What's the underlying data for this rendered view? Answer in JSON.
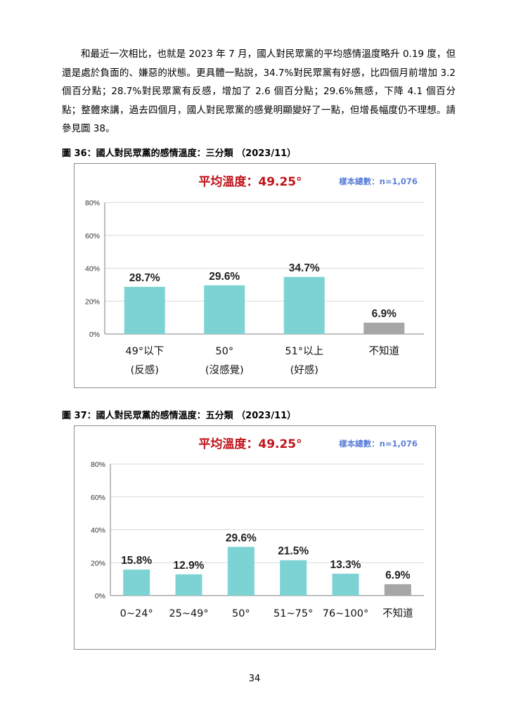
{
  "paragraph": "和最近一次相比，也就是 2023 年 7 月，國人對民眾黨的平均感情溫度略升 0.19 度，但還是處於負面的、嫌惡的狀態。更具體一點說，34.7%對民眾黨有好感，比四個月前增加 3.2 個百分點；28.7%對民眾黨有反感，增加了 2.6 個百分點；29.6%無感，下降 4.1 個百分點；整體來講，過去四個月，國人對民眾黨的感覺明顯變好了一點，但增長幅度仍不理想。請參見圖 38。",
  "page_number": "34",
  "colors": {
    "bar": "#7dd3d3",
    "bar_unknown": "#a6a6a6",
    "avg": "#c0141b",
    "sample": "#5b7fd6",
    "grid": "#d9d9d9"
  },
  "chart_data": [
    {
      "type": "bar",
      "caption": "圖 36：國人對民眾黨的感情溫度：三分類 （2023/11）",
      "avg_label": "平均溫度：49.25°",
      "sample_label": "樣本總數：n=1,076",
      "categories": [
        [
          "49°以下",
          "(反感)"
        ],
        [
          "50°",
          "(沒感覺)"
        ],
        [
          "51°以上",
          "(好感)"
        ],
        [
          "不知道"
        ]
      ],
      "values": [
        28.7,
        29.6,
        34.7,
        6.9
      ],
      "value_labels": [
        "28.7%",
        "29.6%",
        "34.7%",
        "6.9%"
      ],
      "gray_index": 3,
      "ylim": [
        0,
        80
      ],
      "yticks": [
        0,
        20,
        40,
        60,
        80
      ],
      "ytick_labels": [
        "0%",
        "20%",
        "40%",
        "60%",
        "80%"
      ],
      "grid": true
    },
    {
      "type": "bar",
      "caption": "圖 37：國人對民眾黨的感情溫度：五分類 （2023/11）",
      "avg_label": "平均溫度：49.25°",
      "sample_label": "樣本總數：n=1,076",
      "categories": [
        [
          "0~24°"
        ],
        [
          "25~49°"
        ],
        [
          "50°"
        ],
        [
          "51~75°"
        ],
        [
          "76~100°"
        ],
        [
          "不知道"
        ]
      ],
      "values": [
        15.8,
        12.9,
        29.6,
        21.5,
        13.3,
        6.9
      ],
      "value_labels": [
        "15.8%",
        "12.9%",
        "29.6%",
        "21.5%",
        "13.3%",
        "6.9%"
      ],
      "gray_index": 5,
      "ylim": [
        0,
        80
      ],
      "yticks": [
        0,
        20,
        40,
        60,
        80
      ],
      "ytick_labels": [
        "0%",
        "20%",
        "40%",
        "60%",
        "80%"
      ],
      "grid": true
    }
  ]
}
